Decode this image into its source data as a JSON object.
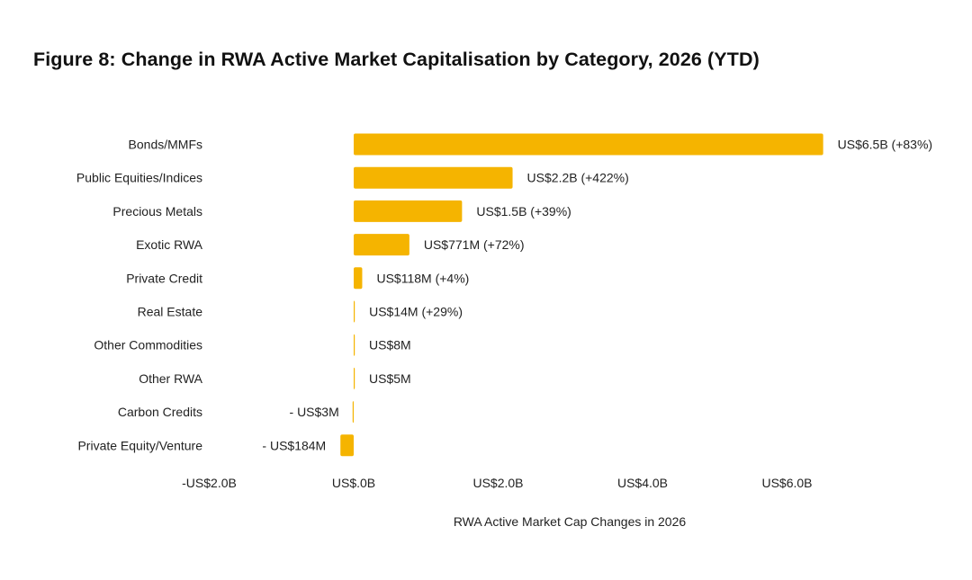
{
  "page": {
    "title": "Figure 8: Change in RWA Active Market Capitalisation by Category, 2026 (YTD)"
  },
  "chart_data": {
    "type": "bar",
    "orientation": "horizontal",
    "title": "Figure 8: Change in RWA Active Market Capitalisation by Category, 2026 (YTD)",
    "xlabel": "RWA Active Market Cap Changes in 2026",
    "ylabel": "",
    "unit": "US$ billions",
    "xlim": [
      -2.0,
      6.0
    ],
    "xticks": [
      -2.0,
      0.0,
      2.0,
      4.0,
      6.0
    ],
    "xtick_labels": [
      "-US$2.0B",
      "US$.0B",
      "US$2.0B",
      "US$4.0B",
      "US$6.0B"
    ],
    "grid": false,
    "legend": "none",
    "bar_color": "#F5B400",
    "categories": [
      "Bonds/MMFs",
      "Public Equities/Indices",
      "Precious Metals",
      "Exotic RWA",
      "Private Credit",
      "Real Estate",
      "Other Commodities",
      "Other RWA",
      "Carbon Credits",
      "Private Equity/Venture"
    ],
    "values": [
      6.5,
      2.2,
      1.5,
      0.771,
      0.118,
      0.014,
      0.008,
      0.005,
      -0.003,
      -0.184
    ],
    "data_labels": [
      "US$6.5B (+83%)",
      "US$2.2B (+422%)",
      "US$1.5B (+39%)",
      "US$771M (+72%)",
      "US$118M (+4%)",
      "US$14M (+29%)",
      "US$8M",
      "US$5M",
      "- US$3M",
      "- US$184M"
    ]
  }
}
